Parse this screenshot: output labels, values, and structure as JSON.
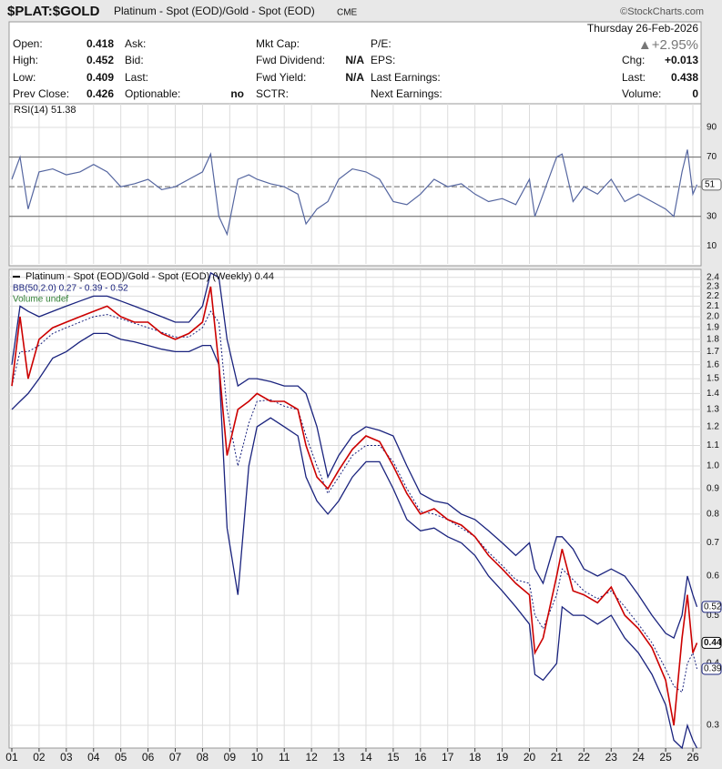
{
  "header": {
    "symbol": "$PLAT:$GOLD",
    "description": "Platinum - Spot (EOD)/Gold - Spot (EOD)",
    "exchange": "CME",
    "source": "©StockCharts.com",
    "date": "Thursday  26-Feb-2026",
    "change_pct": "▲+2.95%"
  },
  "quote": {
    "columns": [
      {
        "items": [
          {
            "label": "Open:",
            "value": 0.418
          },
          {
            "label": "High:",
            "value": 0.452
          },
          {
            "label": "Low:",
            "value": 0.409
          },
          {
            "label": "Prev Close:",
            "value": 0.426
          }
        ]
      },
      {
        "items": [
          {
            "label": "Ask:"
          },
          {
            "label": "Bid:"
          },
          {
            "label": "Last:"
          },
          {
            "label": "Optionable:",
            "value": "no"
          }
        ]
      },
      {
        "items": [
          {
            "label": "Mkt Cap:"
          },
          {
            "label": "Fwd Dividend:",
            "value": "N/A"
          },
          {
            "label": "Fwd Yield:",
            "value": "N/A"
          },
          {
            "label": "SCTR:"
          }
        ]
      },
      {
        "items": [
          {
            "label": "P/E:"
          },
          {
            "label": "EPS:"
          },
          {
            "label": "Last Earnings:"
          },
          {
            "label": "Next Earnings:"
          }
        ]
      },
      {
        "items": [
          {
            "label": "Chg:",
            "value": "+0.013"
          },
          {
            "label": "Last:",
            "value": 0.438
          },
          {
            "label": "Volume:",
            "value": 0
          }
        ]
      }
    ]
  },
  "chart_data": [
    {
      "type": "line",
      "title": "RSI(14) 51.38",
      "color": "#5566a0",
      "x": [
        2001.0,
        2001.3,
        2001.6,
        2002.0,
        2002.5,
        2003.0,
        2003.5,
        2004.0,
        2004.5,
        2005.0,
        2005.5,
        2006.0,
        2006.5,
        2007.0,
        2007.5,
        2008.0,
        2008.3,
        2008.6,
        2008.9,
        2009.3,
        2009.7,
        2010.0,
        2010.5,
        2011.0,
        2011.5,
        2011.8,
        2012.2,
        2012.6,
        2013.0,
        2013.5,
        2014.0,
        2014.5,
        2015.0,
        2015.5,
        2016.0,
        2016.5,
        2017.0,
        2017.5,
        2018.0,
        2018.5,
        2019.0,
        2019.5,
        2020.0,
        2020.2,
        2020.5,
        2021.0,
        2021.2,
        2021.6,
        2022.0,
        2022.5,
        2023.0,
        2023.5,
        2024.0,
        2024.5,
        2025.0,
        2025.3,
        2025.6,
        2025.8,
        2026.0,
        2026.15
      ],
      "values": [
        55,
        70,
        35,
        60,
        62,
        58,
        60,
        65,
        60,
        50,
        52,
        55,
        48,
        50,
        55,
        60,
        72,
        30,
        18,
        55,
        58,
        55,
        52,
        50,
        45,
        25,
        35,
        40,
        55,
        62,
        60,
        55,
        40,
        38,
        45,
        55,
        50,
        52,
        45,
        40,
        42,
        38,
        55,
        30,
        45,
        70,
        72,
        40,
        50,
        45,
        55,
        40,
        45,
        40,
        35,
        30,
        60,
        75,
        45,
        51.38
      ],
      "xlim": [
        2000.9,
        2026.3
      ],
      "ylim": [
        -2,
        101
      ],
      "yticks": [
        10,
        30,
        70,
        90
      ],
      "reference_lines": [
        30,
        50,
        70
      ],
      "current_marker": {
        "value": 51.38,
        "label": "51"
      },
      "grid": true
    },
    {
      "type": "line",
      "log_scale": true,
      "grid": true,
      "x": [
        2001.0,
        2001.3,
        2001.6,
        2002.0,
        2002.5,
        2003.0,
        2003.5,
        2004.0,
        2004.5,
        2005.0,
        2005.5,
        2006.0,
        2006.5,
        2007.0,
        2007.5,
        2008.0,
        2008.3,
        2008.6,
        2008.9,
        2009.3,
        2009.7,
        2010.0,
        2010.5,
        2011.0,
        2011.5,
        2011.8,
        2012.2,
        2012.6,
        2013.0,
        2013.5,
        2014.0,
        2014.5,
        2015.0,
        2015.5,
        2016.0,
        2016.5,
        2017.0,
        2017.5,
        2018.0,
        2018.5,
        2019.0,
        2019.5,
        2020.0,
        2020.2,
        2020.5,
        2021.0,
        2021.2,
        2021.6,
        2022.0,
        2022.5,
        2023.0,
        2023.5,
        2024.0,
        2024.5,
        2025.0,
        2025.3,
        2025.6,
        2025.8,
        2026.0,
        2026.15
      ],
      "series": [
        {
          "name": "Platinum - Spot (EOD)/Gold - Spot (EOD) (Weekly) 0.44",
          "color": "#cc0000",
          "values": [
            1.45,
            2.0,
            1.5,
            1.8,
            1.9,
            1.95,
            2.0,
            2.05,
            2.1,
            2.0,
            1.95,
            1.95,
            1.85,
            1.8,
            1.85,
            1.95,
            2.3,
            1.6,
            1.05,
            1.3,
            1.35,
            1.4,
            1.35,
            1.35,
            1.3,
            1.1,
            0.95,
            0.9,
            0.98,
            1.08,
            1.15,
            1.12,
            1.0,
            0.88,
            0.8,
            0.82,
            0.78,
            0.76,
            0.72,
            0.66,
            0.62,
            0.58,
            0.55,
            0.42,
            0.45,
            0.6,
            0.68,
            0.56,
            0.55,
            0.53,
            0.57,
            0.5,
            0.47,
            0.43,
            0.37,
            0.3,
            0.45,
            0.55,
            0.42,
            0.44
          ]
        }
      ],
      "bands": {
        "label": "BB(50,2.0) 0.27 - 0.39 - 0.52",
        "color": "#1a237e",
        "upper": [
          1.6,
          2.1,
          2.05,
          2.0,
          2.05,
          2.1,
          2.15,
          2.2,
          2.2,
          2.15,
          2.1,
          2.05,
          2.0,
          1.95,
          1.95,
          2.1,
          2.45,
          2.4,
          1.8,
          1.45,
          1.5,
          1.5,
          1.48,
          1.45,
          1.45,
          1.4,
          1.2,
          0.95,
          1.05,
          1.15,
          1.2,
          1.18,
          1.15,
          1.0,
          0.88,
          0.85,
          0.84,
          0.8,
          0.78,
          0.74,
          0.7,
          0.66,
          0.7,
          0.62,
          0.58,
          0.72,
          0.72,
          0.68,
          0.62,
          0.6,
          0.62,
          0.6,
          0.55,
          0.5,
          0.46,
          0.45,
          0.5,
          0.6,
          0.55,
          0.52
        ],
        "middle": [
          1.45,
          1.7,
          1.7,
          1.75,
          1.85,
          1.9,
          1.95,
          2.0,
          2.02,
          1.98,
          1.94,
          1.9,
          1.86,
          1.82,
          1.82,
          1.9,
          2.05,
          1.95,
          1.3,
          1.0,
          1.22,
          1.35,
          1.36,
          1.32,
          1.3,
          1.15,
          1.0,
          0.88,
          0.95,
          1.05,
          1.1,
          1.1,
          1.02,
          0.9,
          0.81,
          0.8,
          0.78,
          0.75,
          0.72,
          0.67,
          0.63,
          0.59,
          0.58,
          0.5,
          0.47,
          0.55,
          0.62,
          0.59,
          0.56,
          0.54,
          0.56,
          0.52,
          0.48,
          0.44,
          0.39,
          0.36,
          0.35,
          0.4,
          0.42,
          0.39
        ],
        "lower": [
          1.3,
          1.35,
          1.4,
          1.5,
          1.65,
          1.7,
          1.78,
          1.85,
          1.85,
          1.8,
          1.78,
          1.75,
          1.72,
          1.7,
          1.7,
          1.75,
          1.75,
          1.6,
          0.75,
          0.55,
          1.0,
          1.2,
          1.25,
          1.2,
          1.15,
          0.95,
          0.85,
          0.8,
          0.85,
          0.95,
          1.02,
          1.02,
          0.9,
          0.78,
          0.74,
          0.75,
          0.72,
          0.7,
          0.66,
          0.6,
          0.56,
          0.52,
          0.48,
          0.38,
          0.37,
          0.4,
          0.52,
          0.5,
          0.5,
          0.48,
          0.5,
          0.45,
          0.42,
          0.38,
          0.33,
          0.28,
          0.27,
          0.3,
          0.28,
          0.27
        ]
      },
      "volume_label": "Volume undef",
      "xlim": [
        2000.9,
        2026.3
      ],
      "ylim": [
        0.27,
        2.47
      ],
      "yticks": [
        2.4,
        2.3,
        2.2,
        2.1,
        {
          "value": 2,
          "label": "2.0"
        },
        1.9,
        1.8,
        1.7,
        1.6,
        1.5,
        1.4,
        1.3,
        1.2,
        1.1,
        {
          "value": 1,
          "label": "1.0"
        },
        0.9,
        0.8,
        0.7,
        0.6,
        0.5,
        0.4,
        0.3
      ],
      "xticks": [
        {
          "value": 2001,
          "label": "01"
        },
        {
          "value": 2002,
          "label": "02"
        },
        {
          "value": 2003,
          "label": "03"
        },
        {
          "value": 2004,
          "label": "04"
        },
        {
          "value": 2005,
          "label": "05"
        },
        {
          "value": 2006,
          "label": "06"
        },
        {
          "value": 2007,
          "label": "07"
        },
        {
          "value": 2008,
          "label": "08"
        },
        {
          "value": 2009,
          "label": "09"
        },
        {
          "value": 2010,
          "label": "10"
        },
        {
          "value": 2011,
          "label": "11"
        },
        {
          "value": 2012,
          "label": "12"
        },
        {
          "value": 2013,
          "label": "13"
        },
        {
          "value": 2014,
          "label": "14"
        },
        {
          "value": 2015,
          "label": "15"
        },
        {
          "value": 2016,
          "label": "16"
        },
        {
          "value": 2017,
          "label": "17"
        },
        {
          "value": 2018,
          "label": "18"
        },
        {
          "value": 2019,
          "label": "19"
        },
        {
          "value": 2020,
          "label": "20"
        },
        {
          "value": 2021,
          "label": "21"
        },
        {
          "value": 2022,
          "label": "22"
        },
        {
          "value": 2023,
          "label": "23"
        },
        {
          "value": 2024,
          "label": "24"
        },
        {
          "value": 2025,
          "label": "25"
        },
        {
          "value": 2026,
          "label": "26"
        }
      ]
    }
  ]
}
